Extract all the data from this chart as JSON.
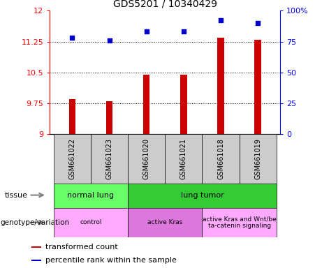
{
  "title": "GDS5201 / 10340429",
  "samples": [
    "GSM661022",
    "GSM661023",
    "GSM661020",
    "GSM661021",
    "GSM661018",
    "GSM661019"
  ],
  "bar_values": [
    9.85,
    9.8,
    10.45,
    10.45,
    11.35,
    11.3
  ],
  "scatter_values": [
    78,
    76,
    83,
    83,
    92,
    90
  ],
  "ylim_left": [
    9.0,
    12.0
  ],
  "ylim_right": [
    0,
    100
  ],
  "yticks_left": [
    9.0,
    9.75,
    10.5,
    11.25,
    12.0
  ],
  "yticks_right": [
    0,
    25,
    50,
    75,
    100
  ],
  "ytick_labels_left": [
    "9",
    "9.75",
    "10.5",
    "11.25",
    "12"
  ],
  "ytick_labels_right": [
    "0",
    "25",
    "50",
    "75",
    "100%"
  ],
  "bar_color": "#cc0000",
  "scatter_color": "#0000cc",
  "bar_bottom": 9.0,
  "bar_width": 0.18,
  "tissue_groups": [
    {
      "label": "normal lung",
      "cols": [
        0,
        1
      ],
      "color": "#66ff66"
    },
    {
      "label": "lung tumor",
      "cols": [
        2,
        3,
        4,
        5
      ],
      "color": "#33cc33"
    }
  ],
  "genotype_groups": [
    {
      "label": "control",
      "cols": [
        0,
        1
      ],
      "color": "#ffaaff"
    },
    {
      "label": "active Kras",
      "cols": [
        2,
        3
      ],
      "color": "#dd77dd"
    },
    {
      "label": "active Kras and Wnt/be\nta-catenin signaling",
      "cols": [
        4,
        5
      ],
      "color": "#ffaaff"
    }
  ],
  "legend_items": [
    {
      "color": "#cc0000",
      "label": "transformed count"
    },
    {
      "color": "#0000cc",
      "label": "percentile rank within the sample"
    }
  ],
  "sample_bg_color": "#cccccc",
  "label_tissue": "tissue",
  "label_genotype": "genotype/variation"
}
